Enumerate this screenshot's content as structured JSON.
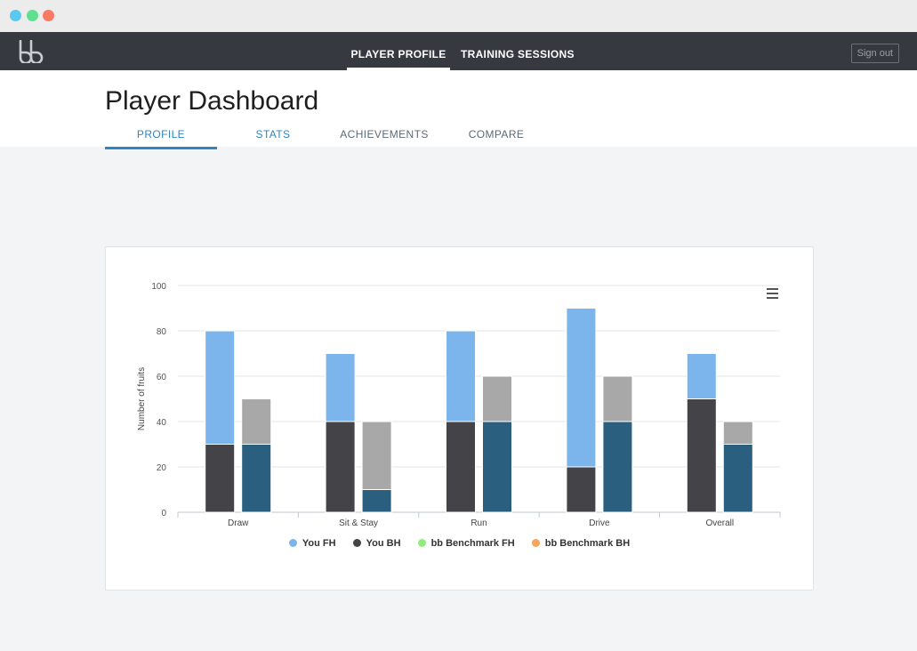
{
  "window": {
    "controls": [
      "close",
      "minimize",
      "maximize"
    ]
  },
  "navbar": {
    "logo_icon": "bb-logo-icon",
    "links": [
      {
        "label": "PLAYER PROFILE",
        "active": true
      },
      {
        "label": "TRAINING SESSIONS",
        "active": false
      }
    ],
    "signout_label": "Sign out"
  },
  "header": {
    "title": "Player Dashboard",
    "tabs": [
      {
        "label": "PROFILE",
        "active": true
      },
      {
        "label": "STATS",
        "active": false
      },
      {
        "label": "ACHIEVEMENTS",
        "active": false
      },
      {
        "label": "COMPARE",
        "active": false
      }
    ]
  },
  "chart_data": {
    "type": "bar",
    "stacked": true,
    "categories": [
      "Draw",
      "Sit & Stay",
      "Run",
      "Drive",
      "Overall"
    ],
    "ylabel": "Number of fruits",
    "xlabel": "",
    "ylim": [
      0,
      100
    ],
    "yticks": [
      0,
      20,
      40,
      60,
      80,
      100
    ],
    "grid": true,
    "legend_position": "bottom",
    "series": [
      {
        "name": "You FH",
        "stack": "you",
        "color": "#7cb5ec",
        "values": [
          50,
          30,
          40,
          70,
          20
        ]
      },
      {
        "name": "You BH",
        "stack": "you",
        "color": "#434348",
        "values": [
          30,
          40,
          40,
          20,
          50
        ]
      },
      {
        "name": "bb Benchmark FH",
        "stack": "benchmark",
        "color": "#90ed7d",
        "values": [
          20,
          30,
          20,
          20,
          10
        ]
      },
      {
        "name": "bb Benchmark BH",
        "stack": "benchmark",
        "color": "#f7a35c",
        "values": [
          30,
          10,
          40,
          40,
          30
        ]
      }
    ],
    "rendered_colors": {
      "bb Benchmark FH": "#a8a8a8",
      "bb Benchmark BH": "#2a5f7f"
    }
  }
}
